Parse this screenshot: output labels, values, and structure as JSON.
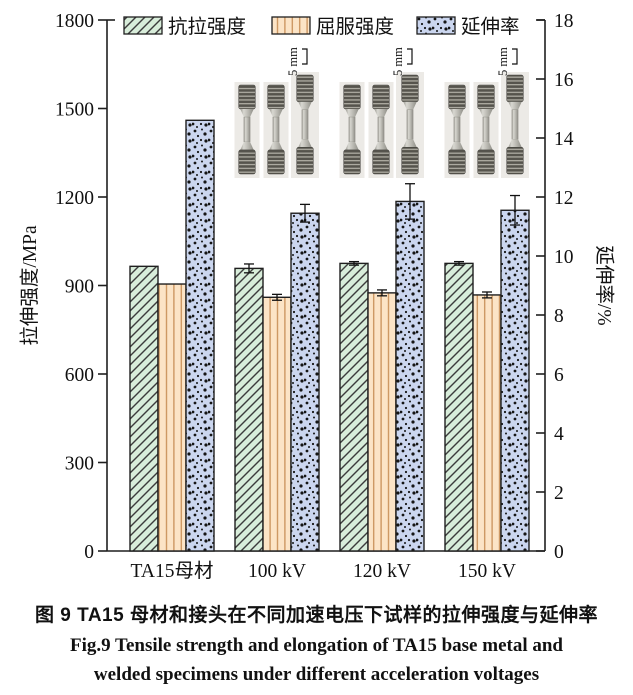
{
  "chart_data": {
    "type": "bar",
    "title": "",
    "categories": [
      "TA15母材",
      "100 kV",
      "120 kV",
      "150 kV"
    ],
    "series": [
      {
        "name": "抗拉强度",
        "axis": "left",
        "pattern": "diagonal",
        "fill": "#d8edda",
        "line": "#3c3c3c",
        "values": [
          965,
          958,
          975,
          975
        ],
        "errors": [
          0,
          15,
          6,
          6
        ]
      },
      {
        "name": "屈服强度",
        "axis": "left",
        "pattern": "vertical",
        "fill": "#fce4c6",
        "line": "#c9915a",
        "values": [
          905,
          860,
          875,
          868
        ],
        "errors": [
          0,
          10,
          10,
          10
        ]
      },
      {
        "name": "延伸率",
        "axis": "right",
        "pattern": "dots",
        "fill": "#cbd6ef",
        "line": "#151515",
        "values": [
          14.6,
          11.45,
          11.85,
          11.55
        ],
        "errors": [
          0,
          0.3,
          0.6,
          0.5
        ]
      }
    ],
    "left_axis": {
      "label": "拉伸强度/MPa",
      "min": 0,
      "max": 1800,
      "step": 300
    },
    "right_axis": {
      "label": "延伸率/%",
      "min": 0,
      "max": 18,
      "step": 2
    },
    "grid": false,
    "legend_position": "top",
    "inset_photos": {
      "applies_to": [
        "100 kV",
        "120 kV",
        "150 kV"
      ],
      "photos_per_group": 3,
      "scale_label": "5 mm"
    }
  },
  "caption": {
    "line1": "图 9  TA15 母材和接头在不同加速电压下试样的拉伸强度与延伸率",
    "line2": "Fig.9  Tensile strength and elongation of TA15 base metal and",
    "line3": "welded specimens under different acceleration voltages"
  }
}
